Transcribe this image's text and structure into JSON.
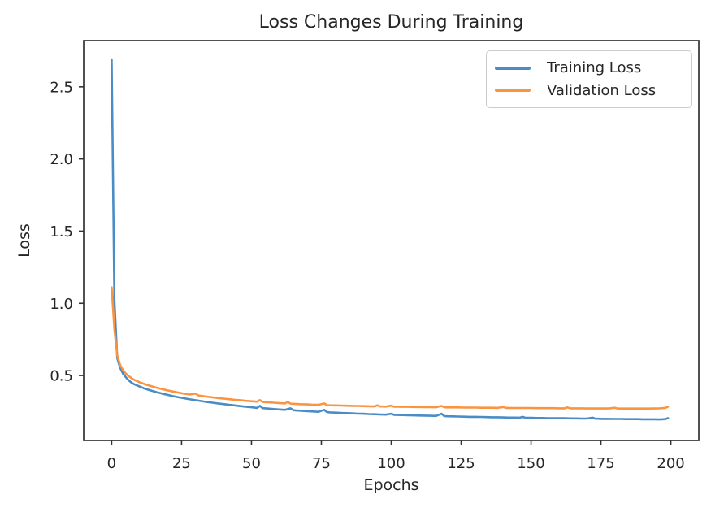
{
  "figure": {
    "background": "#ffffff",
    "text_color": "#262626",
    "spine_color": "#333333"
  },
  "chart_data": {
    "type": "line",
    "title": "Loss Changes During Training",
    "xlabel": "Epochs",
    "ylabel": "Loss",
    "xlim": [
      -10,
      210
    ],
    "ylim": [
      0.05,
      2.82
    ],
    "xticks": [
      0,
      25,
      50,
      75,
      100,
      125,
      150,
      175,
      200
    ],
    "yticks": [
      0.5,
      1.0,
      1.5,
      2.0,
      2.5
    ],
    "grid": false,
    "legend": {
      "position": "upper-right",
      "entries": [
        "Training Loss",
        "Validation Loss"
      ]
    },
    "series": [
      {
        "name": "Training Loss",
        "color": "#4a8cc6",
        "points": [
          [
            0,
            2.69
          ],
          [
            1,
            1.02
          ],
          [
            2,
            0.62
          ],
          [
            3,
            0.555
          ],
          [
            4,
            0.515
          ],
          [
            5,
            0.49
          ],
          [
            6,
            0.468
          ],
          [
            7,
            0.452
          ],
          [
            8,
            0.44
          ],
          [
            9,
            0.432
          ],
          [
            10,
            0.424
          ],
          [
            12,
            0.408
          ],
          [
            14,
            0.396
          ],
          [
            16,
            0.385
          ],
          [
            18,
            0.375
          ],
          [
            20,
            0.366
          ],
          [
            22,
            0.357
          ],
          [
            24,
            0.349
          ],
          [
            26,
            0.342
          ],
          [
            28,
            0.335
          ],
          [
            30,
            0.329
          ],
          [
            32,
            0.323
          ],
          [
            34,
            0.317
          ],
          [
            36,
            0.312
          ],
          [
            38,
            0.307
          ],
          [
            40,
            0.302
          ],
          [
            42,
            0.297
          ],
          [
            44,
            0.293
          ],
          [
            46,
            0.288
          ],
          [
            48,
            0.284
          ],
          [
            50,
            0.28
          ],
          [
            52,
            0.276
          ],
          [
            53,
            0.29
          ],
          [
            54,
            0.274
          ],
          [
            56,
            0.271
          ],
          [
            58,
            0.268
          ],
          [
            60,
            0.265
          ],
          [
            62,
            0.262
          ],
          [
            64,
            0.273
          ],
          [
            65,
            0.26
          ],
          [
            66,
            0.258
          ],
          [
            68,
            0.256
          ],
          [
            70,
            0.253
          ],
          [
            72,
            0.251
          ],
          [
            74,
            0.249
          ],
          [
            76,
            0.262
          ],
          [
            77,
            0.247
          ],
          [
            78,
            0.245
          ],
          [
            80,
            0.243
          ],
          [
            82,
            0.241
          ],
          [
            84,
            0.24
          ],
          [
            86,
            0.238
          ],
          [
            88,
            0.236
          ],
          [
            90,
            0.235
          ],
          [
            92,
            0.233
          ],
          [
            94,
            0.232
          ],
          [
            96,
            0.23
          ],
          [
            98,
            0.229
          ],
          [
            100,
            0.235
          ],
          [
            101,
            0.228
          ],
          [
            102,
            0.227
          ],
          [
            104,
            0.226
          ],
          [
            106,
            0.225
          ],
          [
            108,
            0.224
          ],
          [
            110,
            0.223
          ],
          [
            112,
            0.222
          ],
          [
            114,
            0.221
          ],
          [
            116,
            0.22
          ],
          [
            118,
            0.235
          ],
          [
            119,
            0.219
          ],
          [
            120,
            0.218
          ],
          [
            122,
            0.217
          ],
          [
            124,
            0.216
          ],
          [
            126,
            0.215
          ],
          [
            128,
            0.214
          ],
          [
            130,
            0.214
          ],
          [
            132,
            0.213
          ],
          [
            134,
            0.212
          ],
          [
            136,
            0.211
          ],
          [
            138,
            0.211
          ],
          [
            140,
            0.21
          ],
          [
            142,
            0.209
          ],
          [
            144,
            0.209
          ],
          [
            146,
            0.208
          ],
          [
            147,
            0.214
          ],
          [
            148,
            0.207
          ],
          [
            150,
            0.207
          ],
          [
            152,
            0.206
          ],
          [
            154,
            0.206
          ],
          [
            156,
            0.205
          ],
          [
            158,
            0.205
          ],
          [
            160,
            0.204
          ],
          [
            162,
            0.204
          ],
          [
            164,
            0.203
          ],
          [
            166,
            0.203
          ],
          [
            168,
            0.202
          ],
          [
            170,
            0.202
          ],
          [
            172,
            0.208
          ],
          [
            173,
            0.201
          ],
          [
            174,
            0.201
          ],
          [
            176,
            0.2
          ],
          [
            178,
            0.2
          ],
          [
            180,
            0.199
          ],
          [
            182,
            0.199
          ],
          [
            184,
            0.198
          ],
          [
            186,
            0.198
          ],
          [
            188,
            0.198
          ],
          [
            190,
            0.197
          ],
          [
            192,
            0.197
          ],
          [
            194,
            0.197
          ],
          [
            196,
            0.196
          ],
          [
            198,
            0.198
          ],
          [
            199,
            0.205
          ]
        ]
      },
      {
        "name": "Validation Loss",
        "color": "#fb9441",
        "points": [
          [
            0,
            1.11
          ],
          [
            1,
            0.82
          ],
          [
            2,
            0.64
          ],
          [
            3,
            0.575
          ],
          [
            4,
            0.54
          ],
          [
            5,
            0.515
          ],
          [
            6,
            0.497
          ],
          [
            7,
            0.483
          ],
          [
            8,
            0.471
          ],
          [
            9,
            0.462
          ],
          [
            10,
            0.453
          ],
          [
            12,
            0.439
          ],
          [
            14,
            0.427
          ],
          [
            16,
            0.416
          ],
          [
            18,
            0.406
          ],
          [
            20,
            0.397
          ],
          [
            22,
            0.389
          ],
          [
            24,
            0.381
          ],
          [
            26,
            0.374
          ],
          [
            28,
            0.368
          ],
          [
            30,
            0.375
          ],
          [
            31,
            0.362
          ],
          [
            32,
            0.359
          ],
          [
            34,
            0.354
          ],
          [
            36,
            0.349
          ],
          [
            38,
            0.344
          ],
          [
            40,
            0.34
          ],
          [
            42,
            0.336
          ],
          [
            44,
            0.332
          ],
          [
            46,
            0.329
          ],
          [
            48,
            0.325
          ],
          [
            50,
            0.322
          ],
          [
            52,
            0.319
          ],
          [
            53,
            0.33
          ],
          [
            54,
            0.317
          ],
          [
            56,
            0.314
          ],
          [
            58,
            0.312
          ],
          [
            60,
            0.309
          ],
          [
            62,
            0.307
          ],
          [
            63,
            0.317
          ],
          [
            64,
            0.305
          ],
          [
            66,
            0.303
          ],
          [
            68,
            0.301
          ],
          [
            70,
            0.3
          ],
          [
            72,
            0.298
          ],
          [
            74,
            0.297
          ],
          [
            76,
            0.307
          ],
          [
            77,
            0.295
          ],
          [
            78,
            0.294
          ],
          [
            80,
            0.293
          ],
          [
            82,
            0.292
          ],
          [
            84,
            0.291
          ],
          [
            86,
            0.29
          ],
          [
            88,
            0.289
          ],
          [
            90,
            0.288
          ],
          [
            92,
            0.287
          ],
          [
            94,
            0.286
          ],
          [
            95,
            0.294
          ],
          [
            96,
            0.286
          ],
          [
            98,
            0.285
          ],
          [
            100,
            0.291
          ],
          [
            101,
            0.284
          ],
          [
            102,
            0.284
          ],
          [
            104,
            0.283
          ],
          [
            106,
            0.283
          ],
          [
            108,
            0.282
          ],
          [
            110,
            0.282
          ],
          [
            112,
            0.281
          ],
          [
            114,
            0.281
          ],
          [
            116,
            0.28
          ],
          [
            118,
            0.289
          ],
          [
            119,
            0.28
          ],
          [
            120,
            0.279
          ],
          [
            122,
            0.279
          ],
          [
            124,
            0.279
          ],
          [
            126,
            0.278
          ],
          [
            128,
            0.278
          ],
          [
            130,
            0.278
          ],
          [
            132,
            0.277
          ],
          [
            134,
            0.277
          ],
          [
            136,
            0.277
          ],
          [
            138,
            0.276
          ],
          [
            140,
            0.282
          ],
          [
            141,
            0.276
          ],
          [
            142,
            0.276
          ],
          [
            144,
            0.275
          ],
          [
            146,
            0.275
          ],
          [
            148,
            0.275
          ],
          [
            150,
            0.275
          ],
          [
            152,
            0.274
          ],
          [
            154,
            0.274
          ],
          [
            156,
            0.274
          ],
          [
            158,
            0.274
          ],
          [
            160,
            0.273
          ],
          [
            162,
            0.273
          ],
          [
            163,
            0.279
          ],
          [
            164,
            0.273
          ],
          [
            166,
            0.273
          ],
          [
            168,
            0.273
          ],
          [
            170,
            0.272
          ],
          [
            172,
            0.272
          ],
          [
            174,
            0.272
          ],
          [
            176,
            0.272
          ],
          [
            178,
            0.272
          ],
          [
            180,
            0.277
          ],
          [
            181,
            0.271
          ],
          [
            182,
            0.271
          ],
          [
            184,
            0.271
          ],
          [
            186,
            0.271
          ],
          [
            188,
            0.271
          ],
          [
            190,
            0.271
          ],
          [
            192,
            0.271
          ],
          [
            194,
            0.272
          ],
          [
            196,
            0.273
          ],
          [
            198,
            0.276
          ],
          [
            199,
            0.284
          ]
        ]
      }
    ]
  }
}
